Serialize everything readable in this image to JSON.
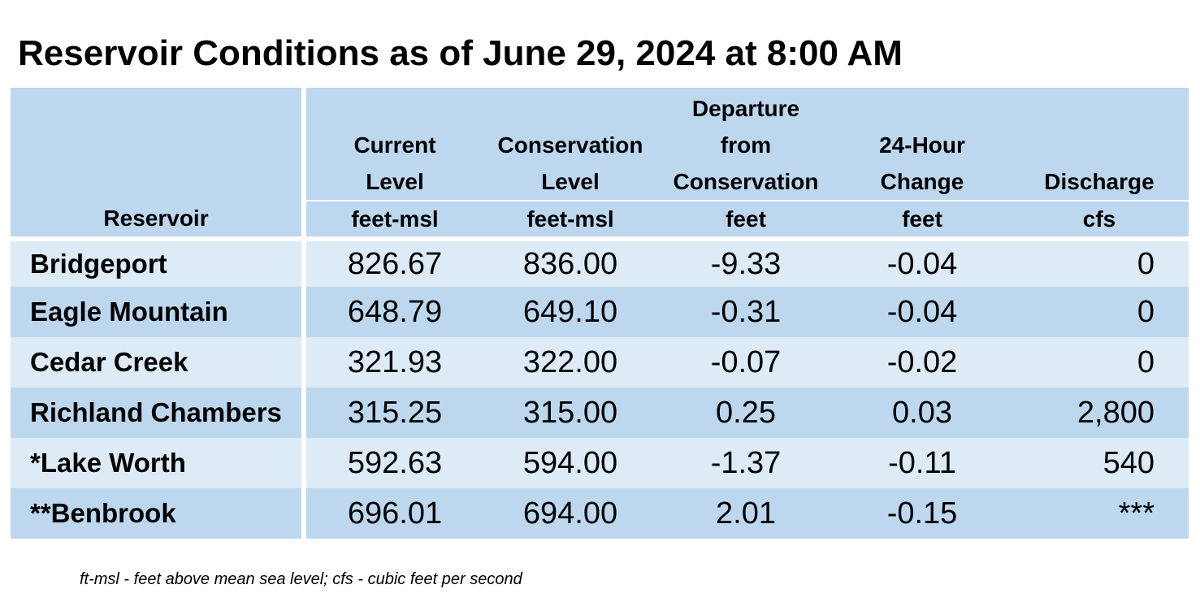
{
  "title": "Reservoir Conditions as of June 29, 2024 at 8:00 AM",
  "columns": [
    {
      "label": "",
      "unit": "Reservoir"
    },
    {
      "label": "Current\nLevel",
      "unit": "feet-msl"
    },
    {
      "label": "Conservation\nLevel",
      "unit": "feet-msl"
    },
    {
      "label": "Departure\nfrom\nConservation",
      "unit": "feet"
    },
    {
      "label": "24-Hour\nChange",
      "unit": "feet"
    },
    {
      "label": "Discharge",
      "unit": "cfs"
    }
  ],
  "rows": [
    {
      "name": "Bridgeport",
      "current": "826.67",
      "conservation": "836.00",
      "departure": "-9.33",
      "change": "-0.04",
      "discharge": "0"
    },
    {
      "name": "Eagle Mountain",
      "current": "648.79",
      "conservation": "649.10",
      "departure": "-0.31",
      "change": "-0.04",
      "discharge": "0"
    },
    {
      "name": "Cedar Creek",
      "current": "321.93",
      "conservation": "322.00",
      "departure": "-0.07",
      "change": "-0.02",
      "discharge": "0"
    },
    {
      "name": "Richland Chambers",
      "current": "315.25",
      "conservation": "315.00",
      "departure": "0.25",
      "change": "0.03",
      "discharge": "2,800"
    },
    {
      "name": "*Lake Worth",
      "current": "592.63",
      "conservation": "594.00",
      "departure": "-1.37",
      "change": "-0.11",
      "discharge": "540"
    },
    {
      "name": "**Benbrook",
      "current": "696.01",
      "conservation": "694.00",
      "departure": "2.01",
      "change": "-0.15",
      "discharge": "***"
    }
  ],
  "footnote": "ft-msl - feet above mean sea level; cfs - cubic feet per second",
  "colors": {
    "header": "#bdd7ee",
    "row_light": "#ddebf7",
    "row_dark": "#bdd7ee"
  }
}
